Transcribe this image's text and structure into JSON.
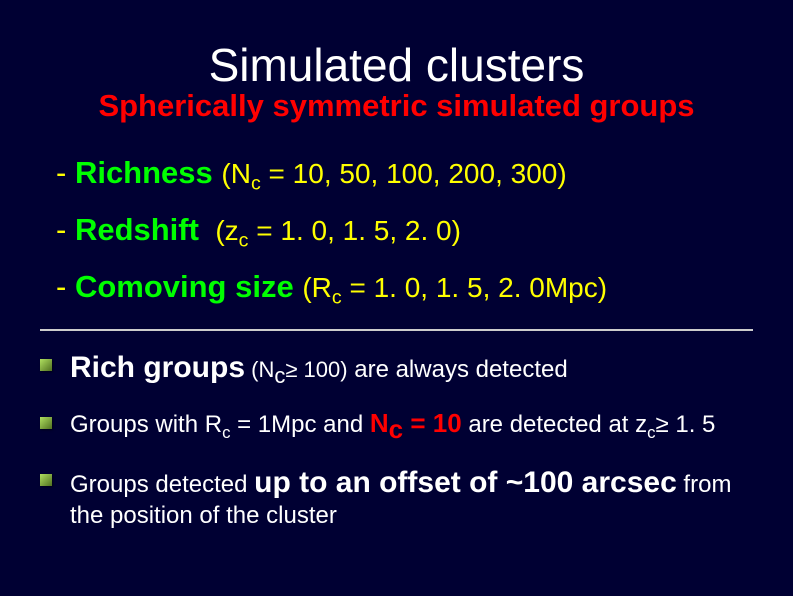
{
  "title": "Simulated clusters",
  "subtitle": "Spherically symmetric simulated groups",
  "params": {
    "richness": {
      "name": "Richness",
      "var": "N",
      "sub": "c",
      "values": " = 10, 50, 100, 200, 300)"
    },
    "redshift": {
      "name": "Redshift",
      "var": "z",
      "sub": "c",
      "values": " = 1. 0, 1. 5, 2. 0)"
    },
    "comoving": {
      "name": "Comoving size",
      "var": "R",
      "sub": "c",
      "values": " = 1. 0, 1. 5, 2. 0Mpc)"
    }
  },
  "bullets": {
    "b1": {
      "lead": "Rich groups",
      "open": " (N",
      "sub": "c",
      "ge": "≥ 100)",
      "tail": " are always detected"
    },
    "b2": {
      "p1": "Groups with R",
      "sub1": "c",
      "p2": " = 1Mpc and ",
      "nc": "N",
      "ncsub": "c ",
      "eq10": "= 10",
      "p3": " are detected at z",
      "sub2": "c",
      "p4": "≥ 1. 5"
    },
    "b3": {
      "p1": " Groups detected ",
      "big1": "up to an offset of ~100 arcsec",
      "p2": " from the position of the cluster"
    }
  },
  "colors": {
    "bg": "#000033",
    "title": "#ffffff",
    "subtitle": "#ff0000",
    "param_name": "#00ff00",
    "param_detail": "#ffff00",
    "text": "#ffffff",
    "highlight": "#ff0000"
  }
}
